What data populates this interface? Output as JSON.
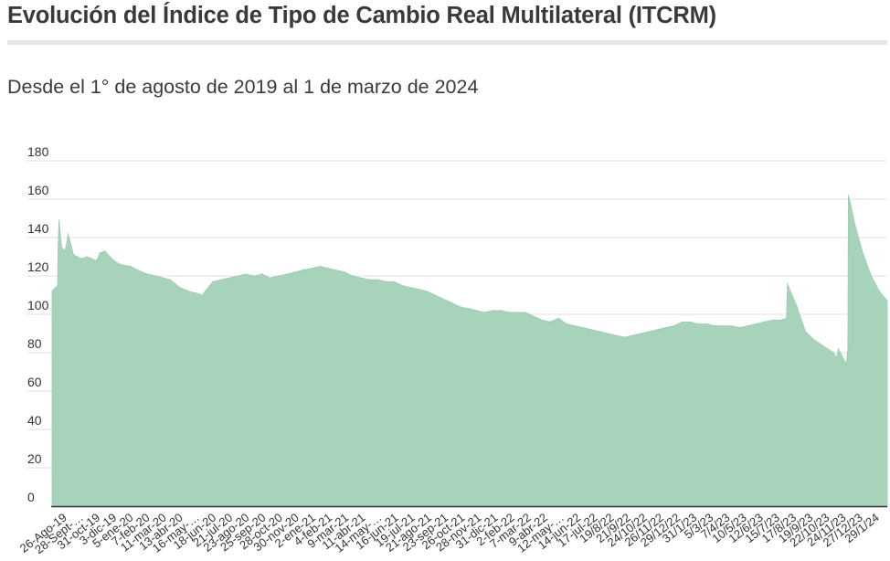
{
  "header": {
    "title": "Evolución del Índice de Tipo de Cambio Real Multilateral (ITCRM)",
    "subtitle": "Desde el 1° de agosto de 2019 al 1 de marzo de 2024"
  },
  "colors": {
    "area_fill": "#a8d3bb",
    "area_stroke": "#9ccbb1",
    "grid": "#e2e2e2",
    "axis": "#333333",
    "text": "#3a3a3a"
  },
  "chart_data": {
    "type": "area",
    "title": "Evolución del Índice de Tipo de Cambio Real Multilateral (ITCRM)",
    "subtitle": "Desde el 1° de agosto de 2019 al 1 de marzo de 2024",
    "xlabel": "",
    "ylabel": "",
    "ylim": [
      0,
      180
    ],
    "yticks": [
      0,
      20,
      40,
      60,
      80,
      100,
      120,
      140,
      160,
      180
    ],
    "grid": true,
    "legend": "none",
    "x_ticks": [
      "26-Ago-19",
      "28-Sept-…",
      "31-oct-19",
      "3-dic-19",
      "5-ene-20",
      "7-feb-20",
      "11-mar-20",
      "13-abr-20",
      "16-may-…",
      "18-jun-20",
      "21-jul-20",
      "23-ago-20",
      "25-sep-20",
      "28-oct-20",
      "30-nov-20",
      "2-ene-21",
      "4-feb-21",
      "9-mar-21",
      "11-abr-21",
      "14-may-…",
      "16-jun-21",
      "19-jul-21",
      "21-ago-21",
      "23-sep-21",
      "26-oct-21",
      "28-nov-21",
      "31-dic-21",
      "2-feb-22",
      "7-mar-22",
      "9-abr-22",
      "12-may-…",
      "14-jun-22",
      "17-jul-22",
      "19/8/22",
      "21/9/22",
      "24/10/22",
      "26/11/22",
      "29/12/22",
      "31/1/23",
      "5/3/23",
      "7/4/23",
      "10/5/23",
      "12/6/23",
      "15/7/23",
      "17/8/23",
      "19/9/23",
      "22/10/23",
      "24/11/23",
      "27/12/23",
      "29/1/24"
    ],
    "series": [
      {
        "x": [
          "1-ago-19",
          "8-ago-19",
          "12-ago-19",
          "13-ago-19",
          "15-ago-19",
          "20-ago-19",
          "26-ago-19",
          "29-ago-19",
          "2-sep-19",
          "13-sep-19",
          "28-sep-19",
          "10-oct-19",
          "20-oct-19",
          "28-oct-19",
          "31-oct-19",
          "5-nov-19",
          "15-nov-19",
          "25-nov-19",
          "3-dic-19",
          "15-dic-19",
          "5-ene-20",
          "20-ene-20",
          "7-feb-20",
          "25-feb-20",
          "11-mar-20",
          "25-mar-20",
          "13-abr-20",
          "1-may-20",
          "16-may-20",
          "28-may-20",
          "3-jun-20",
          "18-jun-20",
          "5-jul-20",
          "21-jul-20",
          "8-ago-20",
          "23-ago-20",
          "10-sep-20",
          "25-sep-20",
          "10-oct-20",
          "28-oct-20",
          "15-nov-20",
          "30-nov-20",
          "15-dic-20",
          "2-ene-21",
          "20-ene-21",
          "4-feb-21",
          "20-feb-21",
          "9-mar-21",
          "25-mar-21",
          "11-abr-21",
          "28-abr-21",
          "14-may-21",
          "1-jun-21",
          "16-jun-21",
          "3-jul-21",
          "19-jul-21",
          "5-ago-21",
          "21-ago-21",
          "7-sep-21",
          "23-sep-21",
          "10-oct-21",
          "26-oct-21",
          "12-nov-21",
          "28-nov-21",
          "15-dic-21",
          "31-dic-21",
          "18-ene-22",
          "2-feb-22",
          "18-feb-22",
          "7-mar-22",
          "23-mar-22",
          "9-abr-22",
          "25-abr-22",
          "12-may-22",
          "28-may-22",
          "14-jun-22",
          "1-jul-22",
          "17-jul-22",
          "3-ago-22",
          "19-ago-22",
          "5-sep-22",
          "21-sep-22",
          "7-oct-22",
          "24-oct-22",
          "10-nov-22",
          "26-nov-22",
          "12-dic-22",
          "29-dic-22",
          "15-ene-23",
          "31-ene-23",
          "16-feb-23",
          "5-mar-23",
          "21-mar-23",
          "7-abr-23",
          "23-abr-23",
          "10-may-23",
          "26-may-23",
          "12-jun-23",
          "28-jun-23",
          "15-jul-23",
          "1-ago-23",
          "12-ago-23",
          "14-ago-23",
          "17-ago-23",
          "2-sep-23",
          "19-sep-23",
          "5-oct-23",
          "22-oct-23",
          "8-nov-23",
          "15-nov-23",
          "20-nov-23",
          "24-nov-23",
          "10-dic-23",
          "13-dic-23",
          "14-dic-23",
          "18-dic-23",
          "27-dic-23",
          "12-ene-24",
          "29-ene-24",
          "14-feb-24",
          "1-mar-24"
        ],
        "values": [
          112,
          114,
          115,
          136,
          149,
          135,
          133,
          135,
          142,
          131,
          129,
          130,
          129,
          128,
          129,
          132,
          133,
          130,
          128,
          126,
          125,
          123,
          121,
          120,
          119,
          118,
          114,
          112,
          111,
          110,
          112,
          117,
          118,
          119,
          120,
          121,
          120,
          121,
          119,
          120,
          121,
          122,
          123,
          124,
          125,
          124,
          123,
          122,
          120,
          119,
          118,
          118,
          117,
          117,
          115,
          114,
          113,
          112,
          110,
          108,
          106,
          104,
          103,
          102,
          101,
          102,
          102,
          101,
          101,
          101,
          99,
          97,
          96,
          98,
          95,
          94,
          93,
          92,
          91,
          90,
          89,
          88,
          89,
          90,
          91,
          92,
          93,
          94,
          96,
          96,
          95,
          95,
          94,
          94,
          94,
          93,
          94,
          95,
          96,
          97,
          97,
          98,
          116,
          114,
          104,
          91,
          87,
          84,
          81,
          80,
          77,
          82,
          74,
          82,
          162,
          158,
          147,
          132,
          120,
          112,
          107
        ]
      }
    ]
  }
}
